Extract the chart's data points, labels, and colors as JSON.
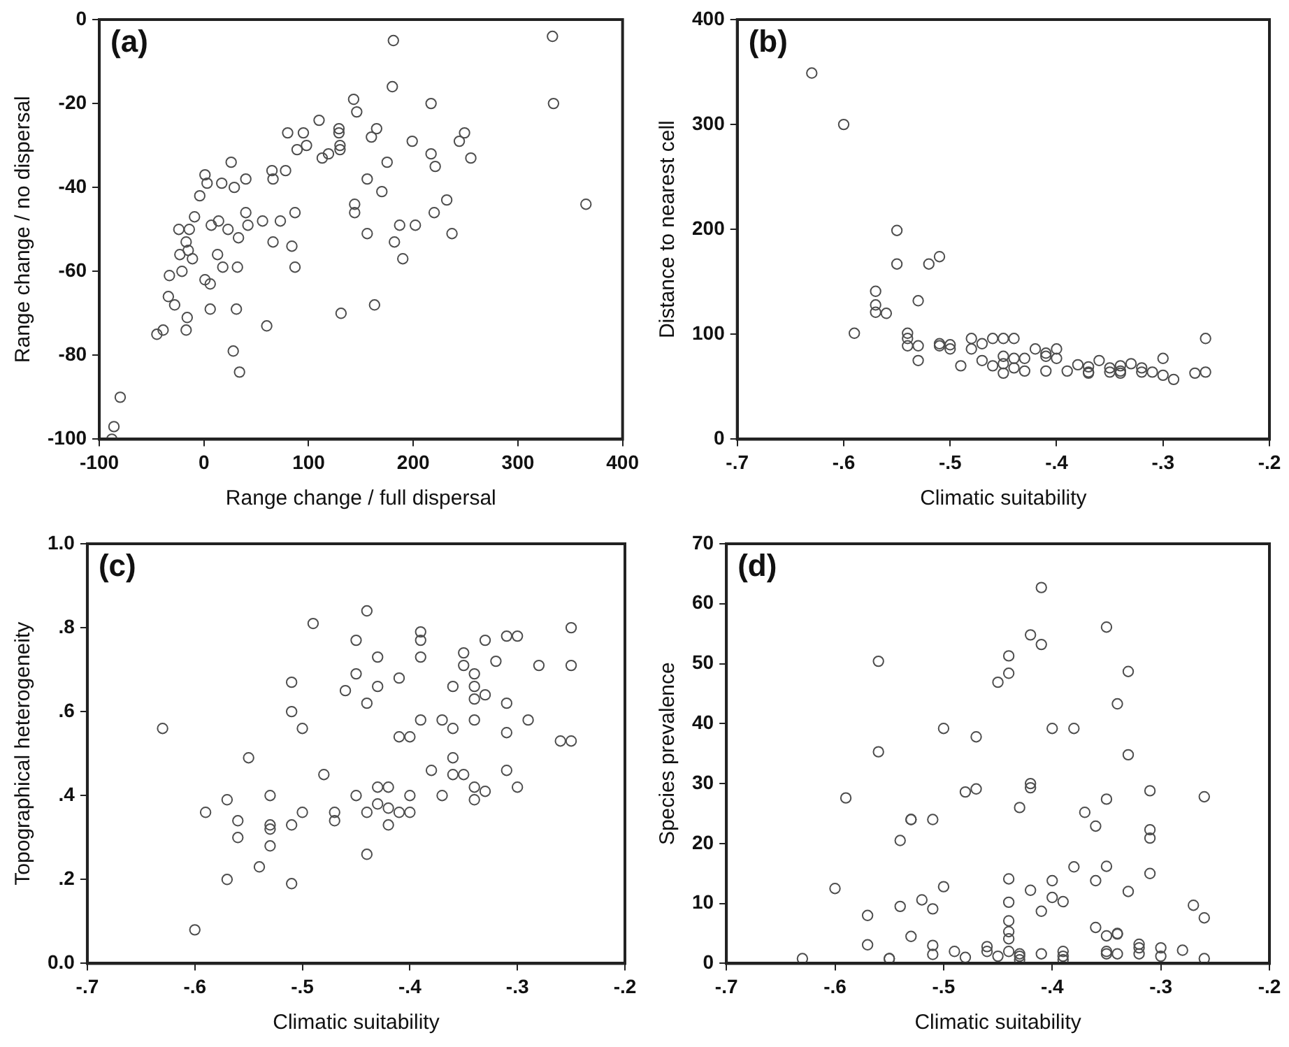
{
  "chart_data": [
    {
      "type": "scatter",
      "annotations": [
        "(a)"
      ],
      "xlabel": "Range change / full dispersal",
      "ylabel": "Range change / no dispersal",
      "color": "#4d4d4d",
      "marker": "circle",
      "xlim": [
        -100,
        400
      ],
      "xticks": [
        -100,
        0,
        100,
        200,
        300,
        400
      ],
      "ylim": [
        -100,
        0
      ],
      "yticks": [
        -100,
        -80,
        -60,
        -40,
        -20,
        0
      ],
      "x": [
        181,
        333,
        334,
        180,
        217,
        143,
        146,
        110,
        80,
        95,
        89,
        98,
        129,
        129,
        113,
        119,
        130,
        130,
        160,
        165,
        199,
        217,
        221,
        244,
        249,
        255,
        175,
        156,
        170,
        144,
        144,
        232,
        220,
        237,
        187,
        202,
        156,
        182,
        190,
        365,
        131,
        163,
        87,
        87,
        84,
        66,
        73,
        56,
        40,
        42,
        33,
        23,
        14,
        7,
        13,
        18,
        32,
        1,
        6,
        6,
        31,
        60,
        28,
        34,
        26,
        40,
        29,
        17,
        1,
        3,
        -4,
        -9,
        -14,
        -24,
        -17,
        -15,
        -11,
        -23,
        -33,
        -21,
        -34,
        -28,
        -16,
        -17,
        -45,
        -39,
        65,
        66,
        78,
        -88,
        -86,
        -80
      ],
      "values": [
        -5,
        -4,
        -20,
        -16,
        -20,
        -19,
        -22,
        -24,
        -27,
        -27,
        -31,
        -30,
        -26,
        -27,
        -33,
        -32,
        -31,
        -30,
        -28,
        -26,
        -29,
        -32,
        -35,
        -29,
        -27,
        -33,
        -34,
        -38,
        -41,
        -44,
        -46,
        -43,
        -46,
        -51,
        -49,
        -49,
        -51,
        -53,
        -57,
        -44,
        -70,
        -68,
        -46,
        -59,
        -54,
        -53,
        -48,
        -48,
        -46,
        -49,
        -52,
        -50,
        -48,
        -49,
        -56,
        -59,
        -59,
        -62,
        -63,
        -69,
        -69,
        -73,
        -79,
        -84,
        -34,
        -38,
        -40,
        -39,
        -37,
        -39,
        -42,
        -47,
        -50,
        -50,
        -53,
        -55,
        -57,
        -56,
        -61,
        -60,
        -66,
        -68,
        -71,
        -74,
        -75,
        -74,
        -36,
        -38,
        -36,
        -100,
        -97,
        -90
      ]
    },
    {
      "type": "scatter",
      "annotations": [
        "(b)"
      ],
      "xlabel": "Climatic suitability",
      "ylabel": "Distance to nearest cell",
      "color": "#4d4d4d",
      "marker": "circle",
      "xlim": [
        -0.7,
        -0.2
      ],
      "xticks": [
        {
          "value": -0.7,
          "label": "-.7"
        },
        {
          "value": -0.6,
          "label": "-.6"
        },
        {
          "value": -0.5,
          "label": "-.5"
        },
        {
          "value": -0.4,
          "label": "-.4"
        },
        {
          "value": -0.3,
          "label": "-.3"
        },
        {
          "value": -0.2,
          "label": "-.2"
        }
      ],
      "ylim": [
        0,
        400
      ],
      "yticks": [
        0,
        100,
        200,
        300,
        400
      ],
      "x": [
        -0.63,
        -0.6,
        -0.59,
        -0.57,
        -0.57,
        -0.56,
        -0.57,
        -0.55,
        -0.55,
        -0.52,
        -0.51,
        -0.53,
        -0.54,
        -0.54,
        -0.54,
        -0.53,
        -0.53,
        -0.51,
        -0.51,
        -0.5,
        -0.5,
        -0.49,
        -0.48,
        -0.48,
        -0.47,
        -0.47,
        -0.46,
        -0.46,
        -0.45,
        -0.45,
        -0.44,
        -0.45,
        -0.44,
        -0.44,
        -0.45,
        -0.43,
        -0.43,
        -0.42,
        -0.41,
        -0.41,
        -0.4,
        -0.4,
        -0.39,
        -0.41,
        -0.38,
        -0.37,
        -0.37,
        -0.37,
        -0.36,
        -0.35,
        -0.35,
        -0.34,
        -0.34,
        -0.34,
        -0.33,
        -0.32,
        -0.32,
        -0.31,
        -0.3,
        -0.3,
        -0.29,
        -0.27,
        -0.26,
        -0.26
      ],
      "values": [
        349,
        300,
        101,
        141,
        128,
        120,
        121,
        199,
        167,
        167,
        174,
        132,
        101,
        96,
        89,
        75,
        89,
        89,
        91,
        86,
        90,
        70,
        96,
        86,
        91,
        75,
        96,
        70,
        96,
        72,
        96,
        79,
        68,
        77,
        63,
        77,
        65,
        86,
        79,
        82,
        86,
        77,
        65,
        65,
        71,
        64,
        69,
        63,
        75,
        68,
        64,
        70,
        65,
        63,
        72,
        64,
        68,
        64,
        77,
        61,
        57,
        63,
        96,
        64
      ]
    },
    {
      "type": "scatter",
      "annotations": [
        "(c)"
      ],
      "xlabel": "Climatic suitability",
      "ylabel": "Topographical heterogeneity",
      "color": "#4d4d4d",
      "marker": "circle",
      "xlim": [
        -0.7,
        -0.2
      ],
      "xticks": [
        {
          "value": -0.7,
          "label": "-.7"
        },
        {
          "value": -0.6,
          "label": "-.6"
        },
        {
          "value": -0.5,
          "label": "-.5"
        },
        {
          "value": -0.4,
          "label": "-.4"
        },
        {
          "value": -0.3,
          "label": "-.3"
        },
        {
          "value": -0.2,
          "label": "-.2"
        }
      ],
      "ylim": [
        0,
        1
      ],
      "yticks": [
        {
          "value": 0,
          "label": "0.0"
        },
        {
          "value": 0.2,
          "label": ".2"
        },
        {
          "value": 0.4,
          "label": ".4"
        },
        {
          "value": 0.6,
          "label": ".6"
        },
        {
          "value": 0.8,
          "label": ".8"
        },
        {
          "value": 1,
          "label": "1.0"
        }
      ],
      "x": [
        -0.63,
        -0.6,
        -0.57,
        -0.54,
        -0.51,
        -0.59,
        -0.57,
        -0.56,
        -0.56,
        -0.53,
        -0.53,
        -0.53,
        -0.53,
        -0.51,
        -0.55,
        -0.51,
        -0.51,
        -0.5,
        -0.49,
        -0.48,
        -0.5,
        -0.47,
        -0.47,
        -0.45,
        -0.43,
        -0.44,
        -0.46,
        -0.45,
        -0.43,
        -0.44,
        -0.45,
        -0.43,
        -0.42,
        -0.44,
        -0.44,
        -0.43,
        -0.42,
        -0.42,
        -0.41,
        -0.4,
        -0.4,
        -0.41,
        -0.4,
        -0.39,
        -0.38,
        -0.37,
        -0.37,
        -0.36,
        -0.36,
        -0.36,
        -0.34,
        -0.35,
        -0.34,
        -0.33,
        -0.34,
        -0.41,
        -0.39,
        -0.39,
        -0.39,
        -0.36,
        -0.35,
        -0.35,
        -0.34,
        -0.34,
        -0.34,
        -0.33,
        -0.33,
        -0.32,
        -0.31,
        -0.31,
        -0.3,
        -0.31,
        -0.29,
        -0.28,
        -0.31,
        -0.3,
        -0.25,
        -0.25,
        -0.26,
        -0.25
      ],
      "values": [
        0.56,
        0.08,
        0.2,
        0.23,
        0.19,
        0.36,
        0.39,
        0.34,
        0.3,
        0.33,
        0.32,
        0.28,
        0.4,
        0.33,
        0.49,
        0.6,
        0.67,
        0.56,
        0.81,
        0.45,
        0.36,
        0.34,
        0.36,
        0.77,
        0.73,
        0.84,
        0.65,
        0.69,
        0.66,
        0.62,
        0.4,
        0.42,
        0.42,
        0.26,
        0.36,
        0.38,
        0.37,
        0.33,
        0.36,
        0.36,
        0.4,
        0.54,
        0.54,
        0.58,
        0.46,
        0.4,
        0.58,
        0.56,
        0.49,
        0.45,
        0.58,
        0.45,
        0.42,
        0.41,
        0.39,
        0.68,
        0.79,
        0.77,
        0.73,
        0.66,
        0.74,
        0.71,
        0.69,
        0.66,
        0.63,
        0.77,
        0.64,
        0.72,
        0.78,
        0.62,
        0.78,
        0.55,
        0.58,
        0.71,
        0.46,
        0.42,
        0.8,
        0.71,
        0.53,
        0.53
      ]
    },
    {
      "type": "scatter",
      "annotations": [
        "(d)"
      ],
      "xlabel": "Climatic suitability",
      "ylabel": "Species prevalence",
      "color": "#4d4d4d",
      "marker": "circle",
      "xlim": [
        -0.7,
        -0.2
      ],
      "xticks": [
        {
          "value": -0.7,
          "label": "-.7"
        },
        {
          "value": -0.6,
          "label": "-.6"
        },
        {
          "value": -0.5,
          "label": "-.5"
        },
        {
          "value": -0.4,
          "label": "-.4"
        },
        {
          "value": -0.3,
          "label": "-.3"
        },
        {
          "value": -0.2,
          "label": "-.2"
        }
      ],
      "ylim": [
        0,
        70
      ],
      "yticks": [
        0,
        10,
        20,
        30,
        40,
        50,
        60,
        70
      ],
      "x": [
        -0.63,
        -0.6,
        -0.59,
        -0.57,
        -0.57,
        -0.56,
        -0.56,
        -0.55,
        -0.55,
        -0.54,
        -0.54,
        -0.53,
        -0.53,
        -0.53,
        -0.52,
        -0.51,
        -0.51,
        -0.51,
        -0.51,
        -0.5,
        -0.5,
        -0.49,
        -0.48,
        -0.48,
        -0.47,
        -0.47,
        -0.46,
        -0.46,
        -0.45,
        -0.45,
        -0.44,
        -0.44,
        -0.44,
        -0.44,
        -0.44,
        -0.44,
        -0.43,
        -0.44,
        -0.44,
        -0.43,
        -0.43,
        -0.43,
        -0.42,
        -0.42,
        -0.42,
        -0.42,
        -0.41,
        -0.41,
        -0.41,
        -0.4,
        -0.41,
        -0.4,
        -0.4,
        -0.39,
        -0.39,
        -0.39,
        -0.39,
        -0.38,
        -0.38,
        -0.37,
        -0.36,
        -0.36,
        -0.36,
        -0.35,
        -0.35,
        -0.35,
        -0.35,
        -0.35,
        -0.35,
        -0.34,
        -0.34,
        -0.34,
        -0.34,
        -0.33,
        -0.33,
        -0.33,
        -0.32,
        -0.32,
        -0.32,
        -0.31,
        -0.31,
        -0.31,
        -0.31,
        -0.3,
        -0.3,
        -0.28,
        -0.27,
        -0.26,
        -0.26,
        -0.26
      ],
      "values": [
        0.8,
        12.5,
        27.6,
        3.1,
        8,
        50.4,
        35.3,
        0.8,
        0.8,
        9.5,
        20.5,
        4.5,
        24,
        24,
        10.6,
        3,
        1.5,
        9.1,
        24,
        12.8,
        39.2,
        2,
        1,
        28.6,
        29.1,
        37.8,
        2.8,
        2,
        1.2,
        46.9,
        14.1,
        4.1,
        5.3,
        51.3,
        10.2,
        48.4,
        26,
        7.1,
        2,
        1.6,
        1.2,
        0.6,
        54.8,
        30,
        29.3,
        12.2,
        53.2,
        1.6,
        8.7,
        11,
        62.7,
        39.2,
        13.8,
        2,
        1.2,
        0.6,
        10.3,
        39.2,
        16.1,
        25.2,
        22.9,
        13.8,
        6,
        2,
        1.6,
        27.4,
        56.1,
        16.2,
        4.6,
        5,
        4.9,
        43.3,
        1.6,
        48.7,
        12,
        34.8,
        3.2,
        1.6,
        2.6,
        28.8,
        15,
        22.3,
        20.9,
        1.2,
        2.6,
        2.2,
        9.7,
        7.6,
        27.8,
        0.8
      ]
    }
  ]
}
